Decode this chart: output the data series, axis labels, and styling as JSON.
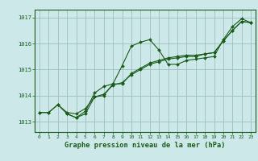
{
  "xlabel": "Graphe pression niveau de la mer (hPa)",
  "background_color": "#cce8e8",
  "grid_color": "#9bbfbf",
  "line_color": "#1a5c1a",
  "marker_color": "#1a5c1a",
  "xlim": [
    -0.5,
    23.5
  ],
  "ylim": [
    1012.6,
    1017.3
  ],
  "yticks": [
    1013,
    1014,
    1015,
    1016,
    1017
  ],
  "xticks": [
    0,
    1,
    2,
    3,
    4,
    5,
    6,
    7,
    8,
    9,
    10,
    11,
    12,
    13,
    14,
    15,
    16,
    17,
    18,
    19,
    20,
    21,
    22,
    23
  ],
  "series1": [
    [
      0,
      1013.35
    ],
    [
      1,
      1013.35
    ],
    [
      2,
      1013.65
    ],
    [
      3,
      1013.3
    ],
    [
      4,
      1013.15
    ],
    [
      5,
      1013.3
    ],
    [
      6,
      1013.95
    ],
    [
      7,
      1014.0
    ],
    [
      8,
      1014.45
    ],
    [
      9,
      1015.15
    ],
    [
      10,
      1015.9
    ],
    [
      11,
      1016.05
    ],
    [
      12,
      1016.15
    ],
    [
      13,
      1015.75
    ],
    [
      14,
      1015.2
    ],
    [
      15,
      1015.2
    ],
    [
      16,
      1015.35
    ],
    [
      17,
      1015.4
    ],
    [
      18,
      1015.45
    ],
    [
      19,
      1015.5
    ],
    [
      20,
      1016.15
    ],
    [
      21,
      1016.65
    ],
    [
      22,
      1016.95
    ],
    [
      23,
      1016.8
    ]
  ],
  "series2": [
    [
      0,
      1013.35
    ],
    [
      1,
      1013.35
    ],
    [
      2,
      1013.65
    ],
    [
      3,
      1013.35
    ],
    [
      4,
      1013.3
    ],
    [
      5,
      1013.5
    ],
    [
      6,
      1013.95
    ],
    [
      7,
      1014.05
    ],
    [
      8,
      1014.4
    ],
    [
      9,
      1014.5
    ],
    [
      10,
      1014.8
    ],
    [
      11,
      1015.0
    ],
    [
      12,
      1015.2
    ],
    [
      13,
      1015.3
    ],
    [
      14,
      1015.4
    ],
    [
      15,
      1015.45
    ],
    [
      16,
      1015.5
    ],
    [
      17,
      1015.5
    ],
    [
      18,
      1015.6
    ],
    [
      19,
      1015.65
    ],
    [
      20,
      1016.1
    ],
    [
      21,
      1016.5
    ],
    [
      22,
      1016.85
    ],
    [
      23,
      1016.8
    ]
  ],
  "series3": [
    [
      3,
      1013.3
    ],
    [
      4,
      1013.15
    ],
    [
      5,
      1013.4
    ],
    [
      6,
      1014.1
    ],
    [
      7,
      1014.35
    ],
    [
      8,
      1014.45
    ],
    [
      9,
      1014.45
    ],
    [
      10,
      1014.85
    ],
    [
      11,
      1015.05
    ],
    [
      12,
      1015.25
    ],
    [
      13,
      1015.35
    ],
    [
      14,
      1015.45
    ],
    [
      15,
      1015.5
    ],
    [
      16,
      1015.55
    ],
    [
      17,
      1015.55
    ],
    [
      18,
      1015.6
    ],
    [
      19,
      1015.65
    ],
    [
      20,
      1016.1
    ],
    [
      21,
      1016.5
    ],
    [
      22,
      1016.85
    ],
    [
      23,
      1016.8
    ]
  ]
}
